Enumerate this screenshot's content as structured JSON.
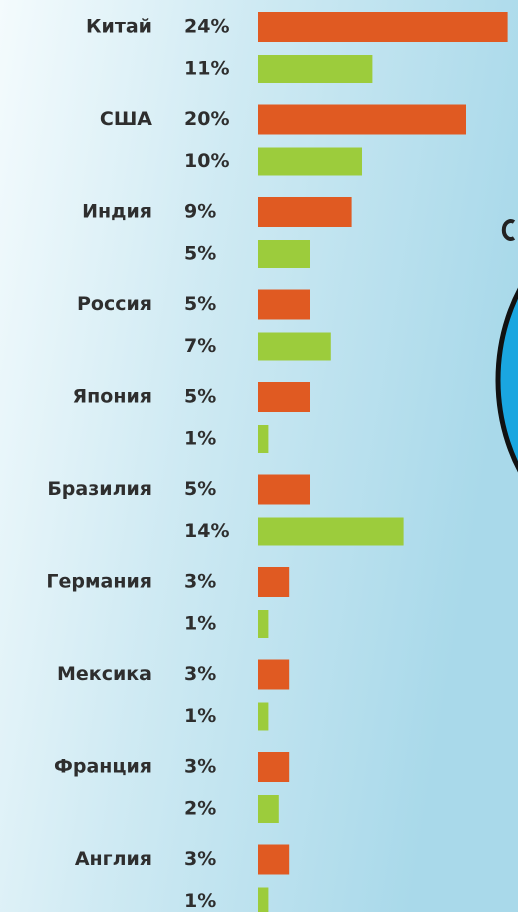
{
  "chart_data": {
    "type": "bar",
    "categories": [
      "Китай",
      "США",
      "Индия",
      "Россия",
      "Япония",
      "Бразилия",
      "Германия",
      "Мексика",
      "Франция",
      "Англия"
    ],
    "series": [
      {
        "color": "#e05a22",
        "values": [
          24,
          20,
          9,
          5,
          5,
          5,
          3,
          3,
          3,
          3
        ],
        "value_labels": [
          "24%",
          "20%",
          "9%",
          "5%",
          "5%",
          "5%",
          "3%",
          "3%",
          "3%",
          "3%"
        ]
      },
      {
        "color": "#9ccc3c",
        "values": [
          11,
          10,
          5,
          7,
          1,
          14,
          1,
          1,
          2,
          1
        ],
        "value_labels": [
          "11%",
          "10%",
          "5%",
          "7%",
          "1%",
          "14%",
          "1%",
          "1%",
          "2%",
          "1%"
        ]
      }
    ]
  }
}
